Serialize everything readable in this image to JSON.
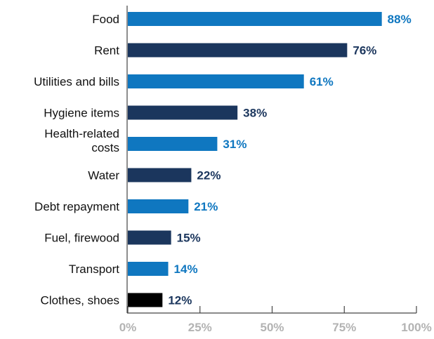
{
  "chart_data": {
    "type": "bar",
    "orientation": "horizontal",
    "categories": [
      [
        "Food"
      ],
      [
        "Rent"
      ],
      [
        "Utilities and bills"
      ],
      [
        "Hygiene items"
      ],
      [
        "Health-related",
        "costs"
      ],
      [
        "Water"
      ],
      [
        "Debt repayment"
      ],
      [
        "Fuel, firewood"
      ],
      [
        "Transport"
      ],
      [
        "Clothes, shoes"
      ]
    ],
    "values": [
      88,
      76,
      61,
      38,
      31,
      22,
      21,
      15,
      14,
      12
    ],
    "value_labels": [
      "88%",
      "76%",
      "61%",
      "38%",
      "31%",
      "22%",
      "21%",
      "15%",
      "14%",
      "12%"
    ],
    "bar_colors": [
      "#0f77c0",
      "#1b365d",
      "#0f77c0",
      "#1b365d",
      "#0f77c0",
      "#1b365d",
      "#0f77c0",
      "#1b365d",
      "#0f77c0",
      "#000000"
    ],
    "label_colors": [
      "#0f77c0",
      "#1b365d",
      "#0f77c0",
      "#1b365d",
      "#0f77c0",
      "#1b365d",
      "#0f77c0",
      "#1b365d",
      "#0f77c0",
      "#1b365d"
    ],
    "x_ticks": [
      0,
      25,
      50,
      75,
      100
    ],
    "x_tick_labels": [
      "0%",
      "25%",
      "50%",
      "75%",
      "100%"
    ],
    "xlim": [
      0,
      100
    ],
    "grid": false,
    "legend": "none",
    "title": "",
    "xlabel": "",
    "ylabel": ""
  }
}
